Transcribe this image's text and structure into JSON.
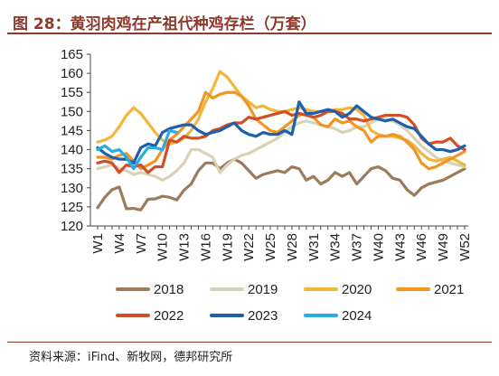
{
  "title": "图 28：黄羽肉鸡在产祖代种鸡存栏（万套）",
  "source": "资料来源：iFind、新牧网，德邦研究所",
  "chart_data": {
    "type": "line",
    "title": "图 28：黄羽肉鸡在产祖代种鸡存栏（万套）",
    "unit": "万套",
    "ylim": [
      120,
      165
    ],
    "yticks": [
      120,
      125,
      130,
      135,
      140,
      145,
      150,
      155,
      160,
      165
    ],
    "x": [
      "W1",
      "W2",
      "W3",
      "W4",
      "W5",
      "W6",
      "W7",
      "W8",
      "W9",
      "W10",
      "W11",
      "W12",
      "W13",
      "W14",
      "W15",
      "W16",
      "W17",
      "W18",
      "W19",
      "W20",
      "W21",
      "W22",
      "W23",
      "W24",
      "W25",
      "W26",
      "W27",
      "W28",
      "W29",
      "W30",
      "W31",
      "W32",
      "W33",
      "W34",
      "W35",
      "W36",
      "W37",
      "W38",
      "W39",
      "W40",
      "W41",
      "W42",
      "W43",
      "W44",
      "W45",
      "W46",
      "W47",
      "W48",
      "W49",
      "W50",
      "W51",
      "W52"
    ],
    "xtick_labels": [
      "W1",
      "W4",
      "W7",
      "W10",
      "W13",
      "W16",
      "W19",
      "W22",
      "W25",
      "W28",
      "W31",
      "W34",
      "W37",
      "W40",
      "W43",
      "W46",
      "W49",
      "W52"
    ],
    "legend_position": "bottom",
    "grid": false,
    "series": [
      {
        "name": "2018",
        "color": "#9c7b5a",
        "values": [
          124.8,
          127.5,
          129.5,
          130.2,
          124.5,
          124.6,
          124.2,
          127,
          127.1,
          127.8,
          127.5,
          126.8,
          129.4,
          131,
          134.5,
          136.5,
          136.5,
          135,
          136.5,
          137.5,
          136.5,
          134.5,
          132.5,
          133.5,
          134,
          134.5,
          134,
          135.5,
          135,
          132,
          133,
          131,
          132,
          134,
          133,
          134,
          131,
          133,
          135,
          135.5,
          134.5,
          132.5,
          132,
          129.5,
          128,
          130,
          131,
          131.5,
          132,
          133,
          134,
          135
        ]
      },
      {
        "name": "2019",
        "color": "#d8d2b6",
        "values": [
          135,
          135.5,
          136,
          135,
          134.5,
          133.5,
          134,
          133.5,
          133,
          132,
          133,
          134.5,
          136.5,
          140,
          140,
          139,
          138,
          134,
          136,
          137.5,
          138.5,
          139,
          140,
          141,
          142,
          143,
          144.5,
          146,
          147,
          147.5,
          147,
          146.5,
          146,
          145.5,
          144.5,
          145,
          146,
          146,
          147,
          148,
          148,
          147.5,
          146.5,
          145,
          143,
          141,
          139.5,
          138,
          137,
          136.5,
          136,
          135.5
        ]
      },
      {
        "name": "2020",
        "color": "#f3b53a",
        "values": [
          142,
          142.5,
          143.5,
          146,
          149,
          151,
          149.5,
          147,
          144.5,
          142.5,
          141.5,
          142,
          143,
          145,
          148,
          152.5,
          156,
          160.5,
          159,
          156.5,
          154,
          152.5,
          151,
          151.5,
          150.5,
          150,
          150,
          150.5,
          151,
          150.5,
          150,
          150,
          150,
          150.5,
          150.5,
          151,
          150.5,
          149,
          145,
          144,
          143.5,
          143.5,
          143,
          142.5,
          141,
          139,
          137.5,
          137,
          137.5,
          138,
          137,
          136
        ]
      },
      {
        "name": "2021",
        "color": "#f19523",
        "values": [
          138,
          138,
          137.5,
          138.5,
          139,
          137,
          135,
          136,
          137,
          140,
          142.5,
          144,
          146,
          148,
          150,
          155,
          153.5,
          154.5,
          155,
          155,
          154,
          151.5,
          148,
          146.5,
          145,
          144.5,
          146,
          147.5,
          149,
          149.5,
          148.5,
          146.5,
          146,
          148,
          147,
          147.5,
          146,
          145,
          142,
          143.5,
          143.5,
          144,
          143.5,
          142,
          140,
          136.5,
          135,
          135.5,
          136.5,
          137.5,
          138.5,
          139.5
        ]
      },
      {
        "name": "2022",
        "color": "#d24f25",
        "values": [
          136.5,
          137,
          136.5,
          134,
          136,
          135.5,
          136,
          134,
          135.5,
          135.5,
          142.5,
          142,
          143.5,
          143,
          143,
          143.5,
          145,
          145.5,
          146.5,
          147,
          147,
          148.5,
          148,
          148.5,
          149,
          149.5,
          150,
          149,
          149.5,
          149,
          148.5,
          149,
          150,
          150,
          149.5,
          148,
          148,
          147.5,
          148,
          148.5,
          149,
          149,
          149,
          148.5,
          146.5,
          143,
          141.5,
          142,
          142,
          143,
          141,
          140
        ]
      },
      {
        "name": "2023",
        "color": "#1f5fad",
        "values": [
          140.5,
          139,
          138,
          137.5,
          137.5,
          136.5,
          140.5,
          141.5,
          141,
          144.5,
          145.5,
          146,
          146.5,
          146.5,
          145,
          144,
          144.5,
          145,
          146,
          147,
          145,
          144,
          143.5,
          144.5,
          144,
          144,
          145,
          144,
          152.5,
          149.5,
          149.5,
          150,
          150.5,
          150,
          148.5,
          149.5,
          151.5,
          150,
          148.5,
          148,
          147.5,
          148,
          147,
          146,
          145.5,
          143.5,
          141.5,
          140,
          140,
          139.5,
          140,
          141
        ]
      },
      {
        "name": "2024",
        "color": "#27ace4",
        "values": [
          140,
          141,
          139.5,
          140,
          138,
          135,
          138,
          140.5,
          140.5,
          140,
          145,
          144.5,
          null,
          null,
          null,
          null,
          null,
          null,
          null,
          null,
          null,
          null,
          null,
          null,
          null,
          null,
          null,
          null,
          null,
          null,
          null,
          null,
          null,
          null,
          null,
          null,
          null,
          null,
          null,
          null,
          null,
          null,
          null,
          null,
          null,
          null,
          null,
          null,
          null,
          null,
          null,
          null
        ]
      }
    ]
  }
}
